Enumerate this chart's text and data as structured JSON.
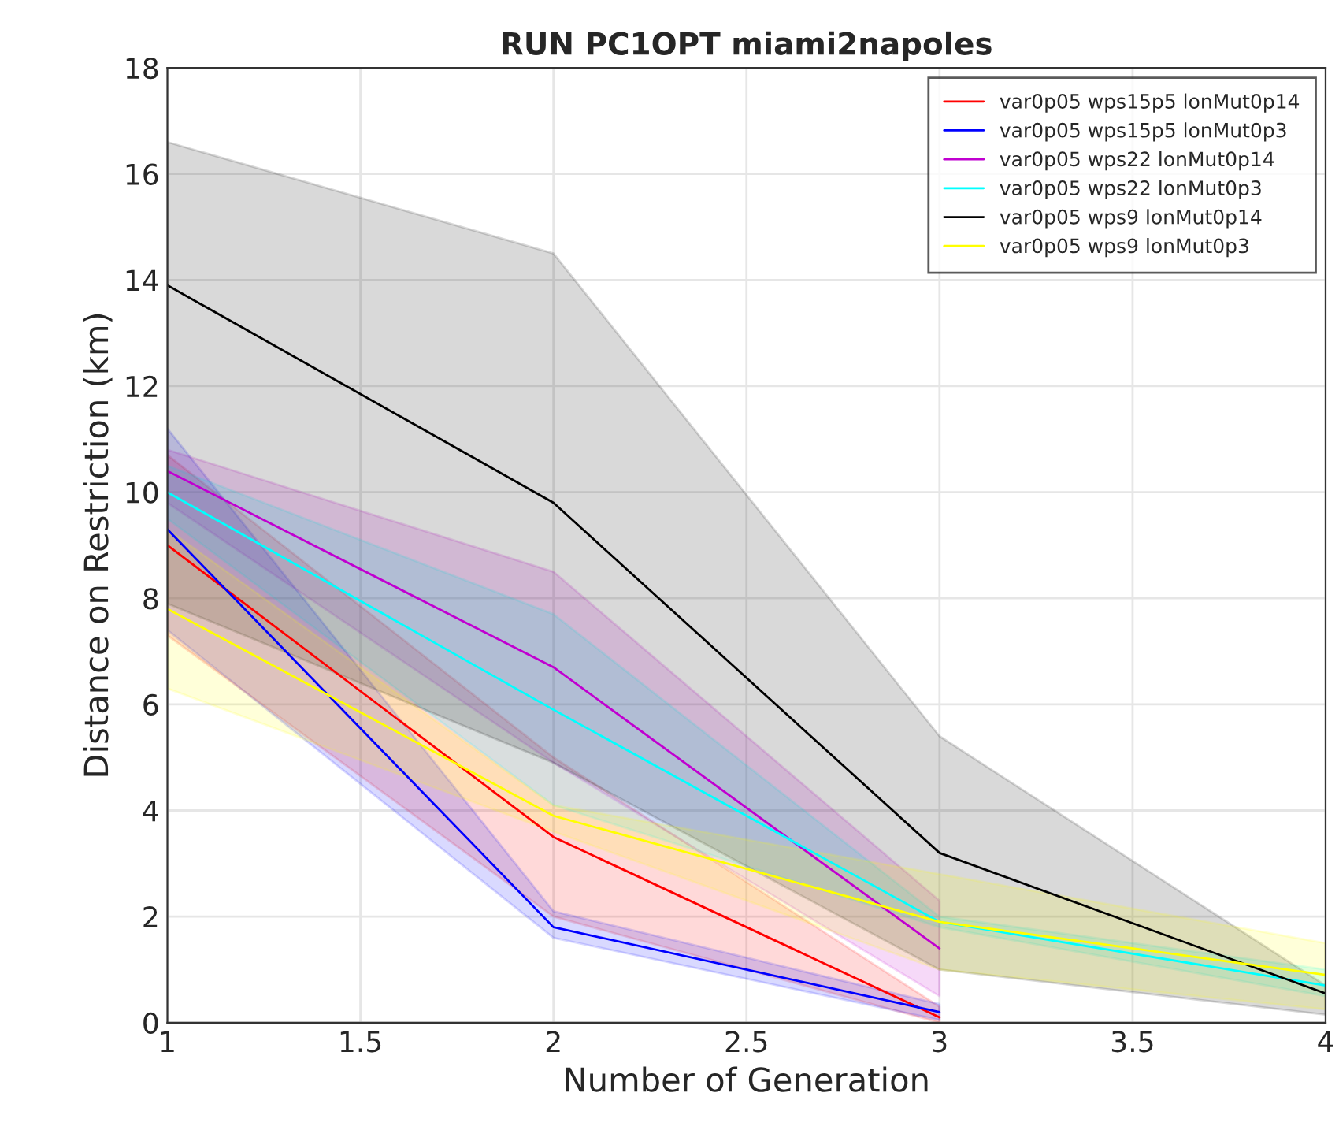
{
  "chart_data": {
    "type": "line",
    "title": "RUN PC1OPT miami2napoles",
    "xlabel": "Number of Generation",
    "ylabel": "Distance on Restriction (km)",
    "xlim": [
      1,
      4
    ],
    "xticks": [
      1,
      1.5,
      2,
      2.5,
      3,
      3.5,
      4
    ],
    "ylim": [
      0,
      18
    ],
    "yticks": [
      0,
      2,
      4,
      6,
      8,
      10,
      12,
      14,
      16,
      18
    ],
    "grid": true,
    "legend": "top right",
    "line_style": "solid",
    "series": [
      {
        "name": "var0p05 wps15p5 lonMut0p14",
        "color": "#ff0000",
        "x": [
          1,
          2,
          3
        ],
        "values": [
          9.0,
          3.5,
          0.1
        ],
        "lower": [
          7.3,
          2.0,
          0.0
        ],
        "upper": [
          10.7,
          5.0,
          0.3
        ]
      },
      {
        "name": "var0p05 wps15p5 lonMut0p3",
        "color": "#0000ff",
        "x": [
          1,
          2,
          3
        ],
        "values": [
          9.3,
          1.8,
          0.2
        ],
        "lower": [
          7.4,
          1.6,
          0.05
        ],
        "upper": [
          11.2,
          2.1,
          0.35
        ]
      },
      {
        "name": "var0p05 wps22 lonMut0p14",
        "color": "#c000d0",
        "x": [
          1,
          2,
          3
        ],
        "values": [
          10.4,
          6.7,
          1.4
        ],
        "lower": [
          9.8,
          4.9,
          0.5
        ],
        "upper": [
          10.8,
          8.5,
          2.3
        ]
      },
      {
        "name": "var0p05 wps22 lonMut0p3",
        "color": "#00ffff",
        "x": [
          1,
          2,
          3,
          4
        ],
        "values": [
          10.0,
          5.9,
          1.9,
          0.7
        ],
        "lower": [
          9.5,
          4.1,
          1.8,
          0.5
        ],
        "upper": [
          10.5,
          7.7,
          2.0,
          1.0
        ]
      },
      {
        "name": "var0p05 wps9 lonMut0p14",
        "color": "#000000",
        "x": [
          1,
          2,
          3,
          4
        ],
        "values": [
          13.9,
          9.8,
          3.2,
          0.55
        ],
        "lower": [
          7.9,
          4.9,
          1.0,
          0.15
        ],
        "upper": [
          16.6,
          14.5,
          5.4,
          0.7
        ]
      },
      {
        "name": "var0p05 wps9 lonMut0p3",
        "color": "#ffff00",
        "x": [
          1,
          2,
          3,
          4
        ],
        "values": [
          7.8,
          3.9,
          1.9,
          0.9
        ],
        "lower": [
          6.3,
          3.6,
          1.0,
          0.25
        ],
        "upper": [
          9.3,
          4.1,
          2.8,
          1.5
        ]
      }
    ]
  }
}
